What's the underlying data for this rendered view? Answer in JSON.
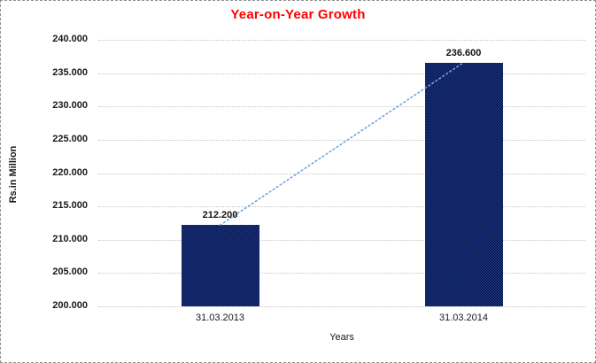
{
  "chart_data": {
    "type": "bar",
    "title": "Year-on-Year Growth",
    "categories": [
      "31.03.2013",
      "31.03.2014"
    ],
    "values": [
      212.2,
      236.6
    ],
    "data_labels": [
      "212.200",
      "236.600"
    ],
    "xlabel": "Years",
    "ylabel": "Rs.in Million",
    "ylim": [
      200,
      240
    ],
    "ytick_step": 5,
    "ytick_labels": [
      "240.000",
      "235.000",
      "230.000",
      "225.000",
      "220.000",
      "215.000",
      "210.000",
      "205.000",
      "200.000"
    ],
    "grid": true,
    "legend_position": "none",
    "trendline": true,
    "colors": {
      "title": "#fe0000",
      "bar_base": "#101f5c",
      "bar_light": "#1e3a96",
      "bar_dark": "#061238",
      "trendline": "#6fa3dc",
      "gridline": "#c6c6c6",
      "text": "#1a1a1a"
    }
  }
}
